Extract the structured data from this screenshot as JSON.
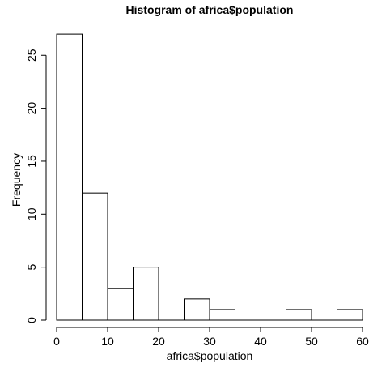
{
  "chart_data": {
    "type": "bar",
    "title": "Histogram of africa$population",
    "xlabel": "africa$population",
    "ylabel": "Frequency",
    "bins": [
      {
        "from": 0,
        "to": 5,
        "count": 27
      },
      {
        "from": 5,
        "to": 10,
        "count": 12
      },
      {
        "from": 10,
        "to": 15,
        "count": 3
      },
      {
        "from": 15,
        "to": 20,
        "count": 5
      },
      {
        "from": 20,
        "to": 25,
        "count": 0
      },
      {
        "from": 25,
        "to": 30,
        "count": 2
      },
      {
        "from": 30,
        "to": 35,
        "count": 1
      },
      {
        "from": 35,
        "to": 40,
        "count": 0
      },
      {
        "from": 40,
        "to": 45,
        "count": 0
      },
      {
        "from": 45,
        "to": 50,
        "count": 1
      },
      {
        "from": 50,
        "to": 55,
        "count": 0
      },
      {
        "from": 55,
        "to": 60,
        "count": 1
      }
    ],
    "xlim": [
      0,
      60
    ],
    "ylim": [
      0,
      25
    ],
    "xticks": [
      "0",
      "10",
      "20",
      "30",
      "40",
      "50",
      "60"
    ],
    "yticks": [
      "0",
      "5",
      "10",
      "15",
      "20",
      "25"
    ],
    "grid": false
  }
}
